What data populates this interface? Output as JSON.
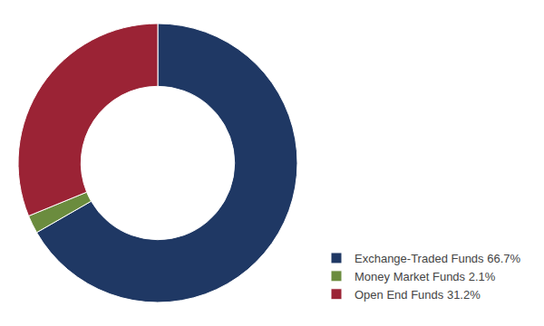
{
  "chart_data": {
    "type": "donut",
    "categories": [
      "Exchange-Traded Funds 66.7%",
      "Money Market Funds 2.1%",
      "Open End Funds 31.2%"
    ],
    "values": [
      66.7,
      2.1,
      31.2
    ],
    "colors": [
      "#1F3864",
      "#6B8C3E",
      "#9B2335"
    ],
    "legend": "lower right"
  }
}
